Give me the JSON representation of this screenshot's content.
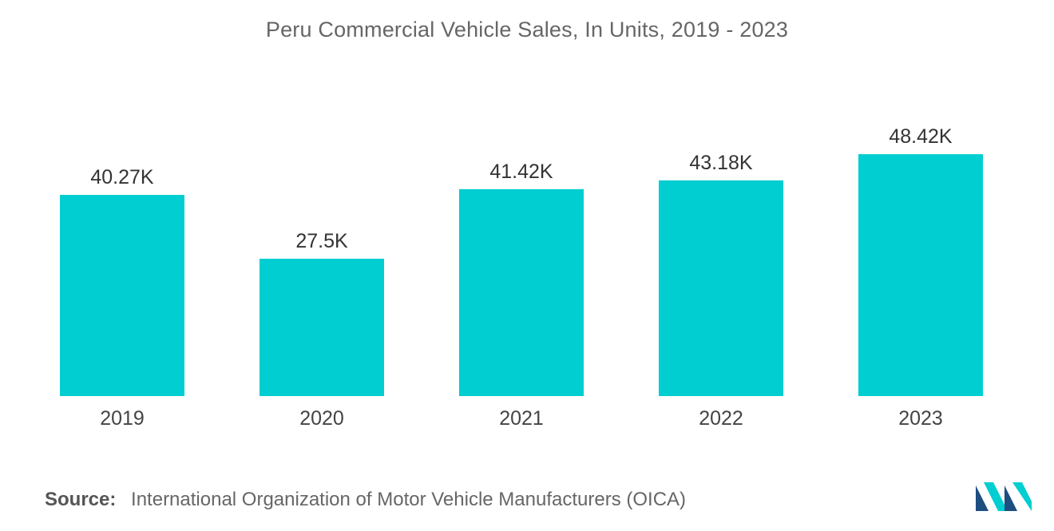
{
  "chart_data": {
    "type": "bar",
    "title": "Peru Commercial Vehicle Sales, In Units, 2019 - 2023",
    "categories": [
      "2019",
      "2020",
      "2021",
      "2022",
      "2023"
    ],
    "values": [
      40270,
      27500,
      41420,
      43180,
      48420
    ],
    "data_labels": [
      "40.27K",
      "27.5K",
      "41.42K",
      "43.18K",
      "48.42K"
    ],
    "xlabel": "",
    "ylabel": "",
    "ylim": [
      0,
      50000
    ],
    "grid": false,
    "bar_color": "#00CED1"
  },
  "source": {
    "label": "Source:",
    "text": "International Organization of Motor Vehicle Manufacturers (OICA)"
  },
  "logo": {
    "icon": "mordor-intelligence-logo-icon",
    "colors": [
      "#1C4E80",
      "#00CED1"
    ]
  }
}
